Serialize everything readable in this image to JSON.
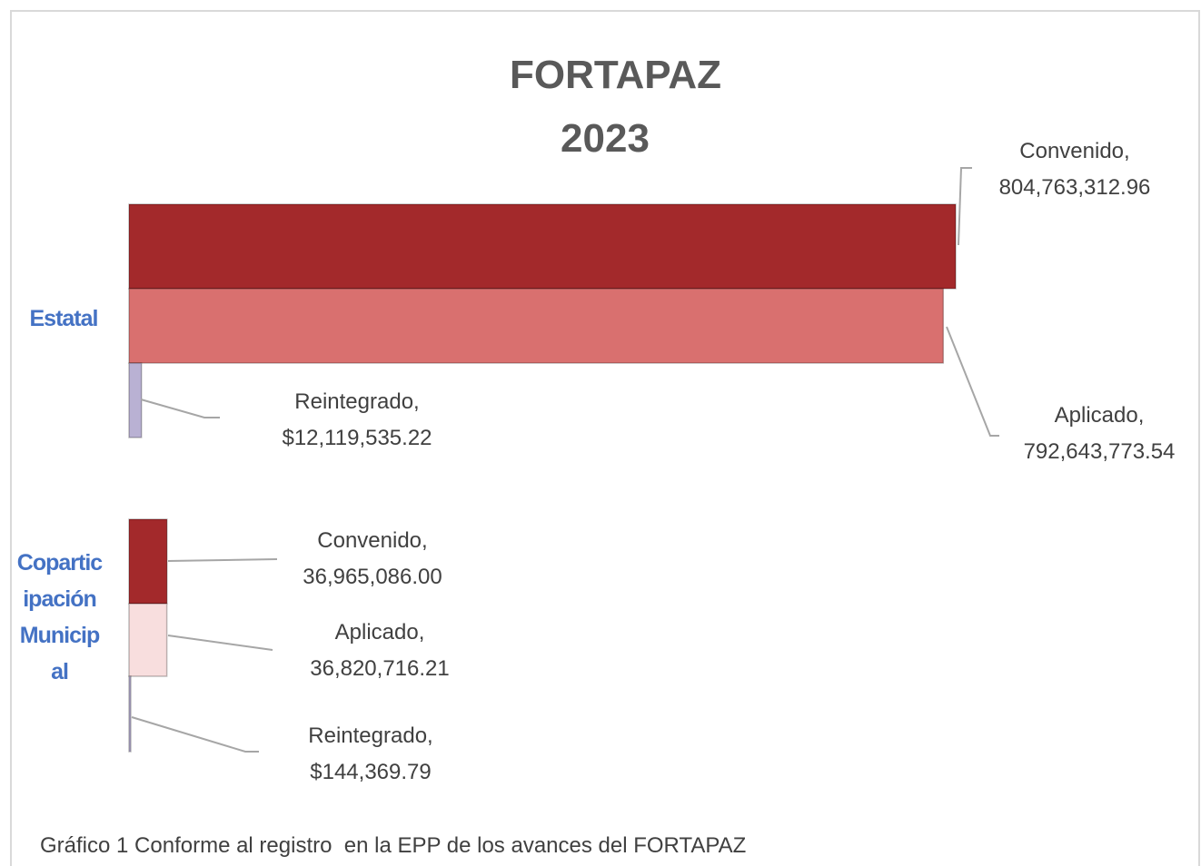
{
  "chart_data": {
    "type": "bar",
    "orientation": "horizontal",
    "title": "FORTAPAZ 2023",
    "categories": [
      "Estatal",
      "Coparticipación Municipal"
    ],
    "series": [
      {
        "name": "Convenido",
        "color": "#a3292b",
        "colors": [
          "#a3292b",
          "#a3292b"
        ],
        "values": [
          804763312.96,
          36965086.0
        ],
        "value_labels": [
          "Convenido, 804,763,312.96",
          "Convenido, 36,965,086.00"
        ]
      },
      {
        "name": "Aplicado",
        "color": "#d9706f",
        "colors": [
          "#d9706f",
          "#f8dede"
        ],
        "values": [
          792643773.54,
          36820716.21
        ],
        "value_labels": [
          "Aplicado, 792,643,773.54",
          "Aplicado, 36,820,716.21"
        ]
      },
      {
        "name": "Reintegrado",
        "color": "#b9b1d3",
        "colors": [
          "#b9b1d3",
          "#b9b1d3"
        ],
        "values": [
          12119535.22,
          144369.79
        ],
        "value_labels": [
          "Reintegrado, $12,119,535.22",
          "Reintegrado, $144,369.79"
        ]
      }
    ],
    "caption": "Gráfico 1 Conforme al registro  en la EPP de los avances del FORTAPAZ"
  }
}
